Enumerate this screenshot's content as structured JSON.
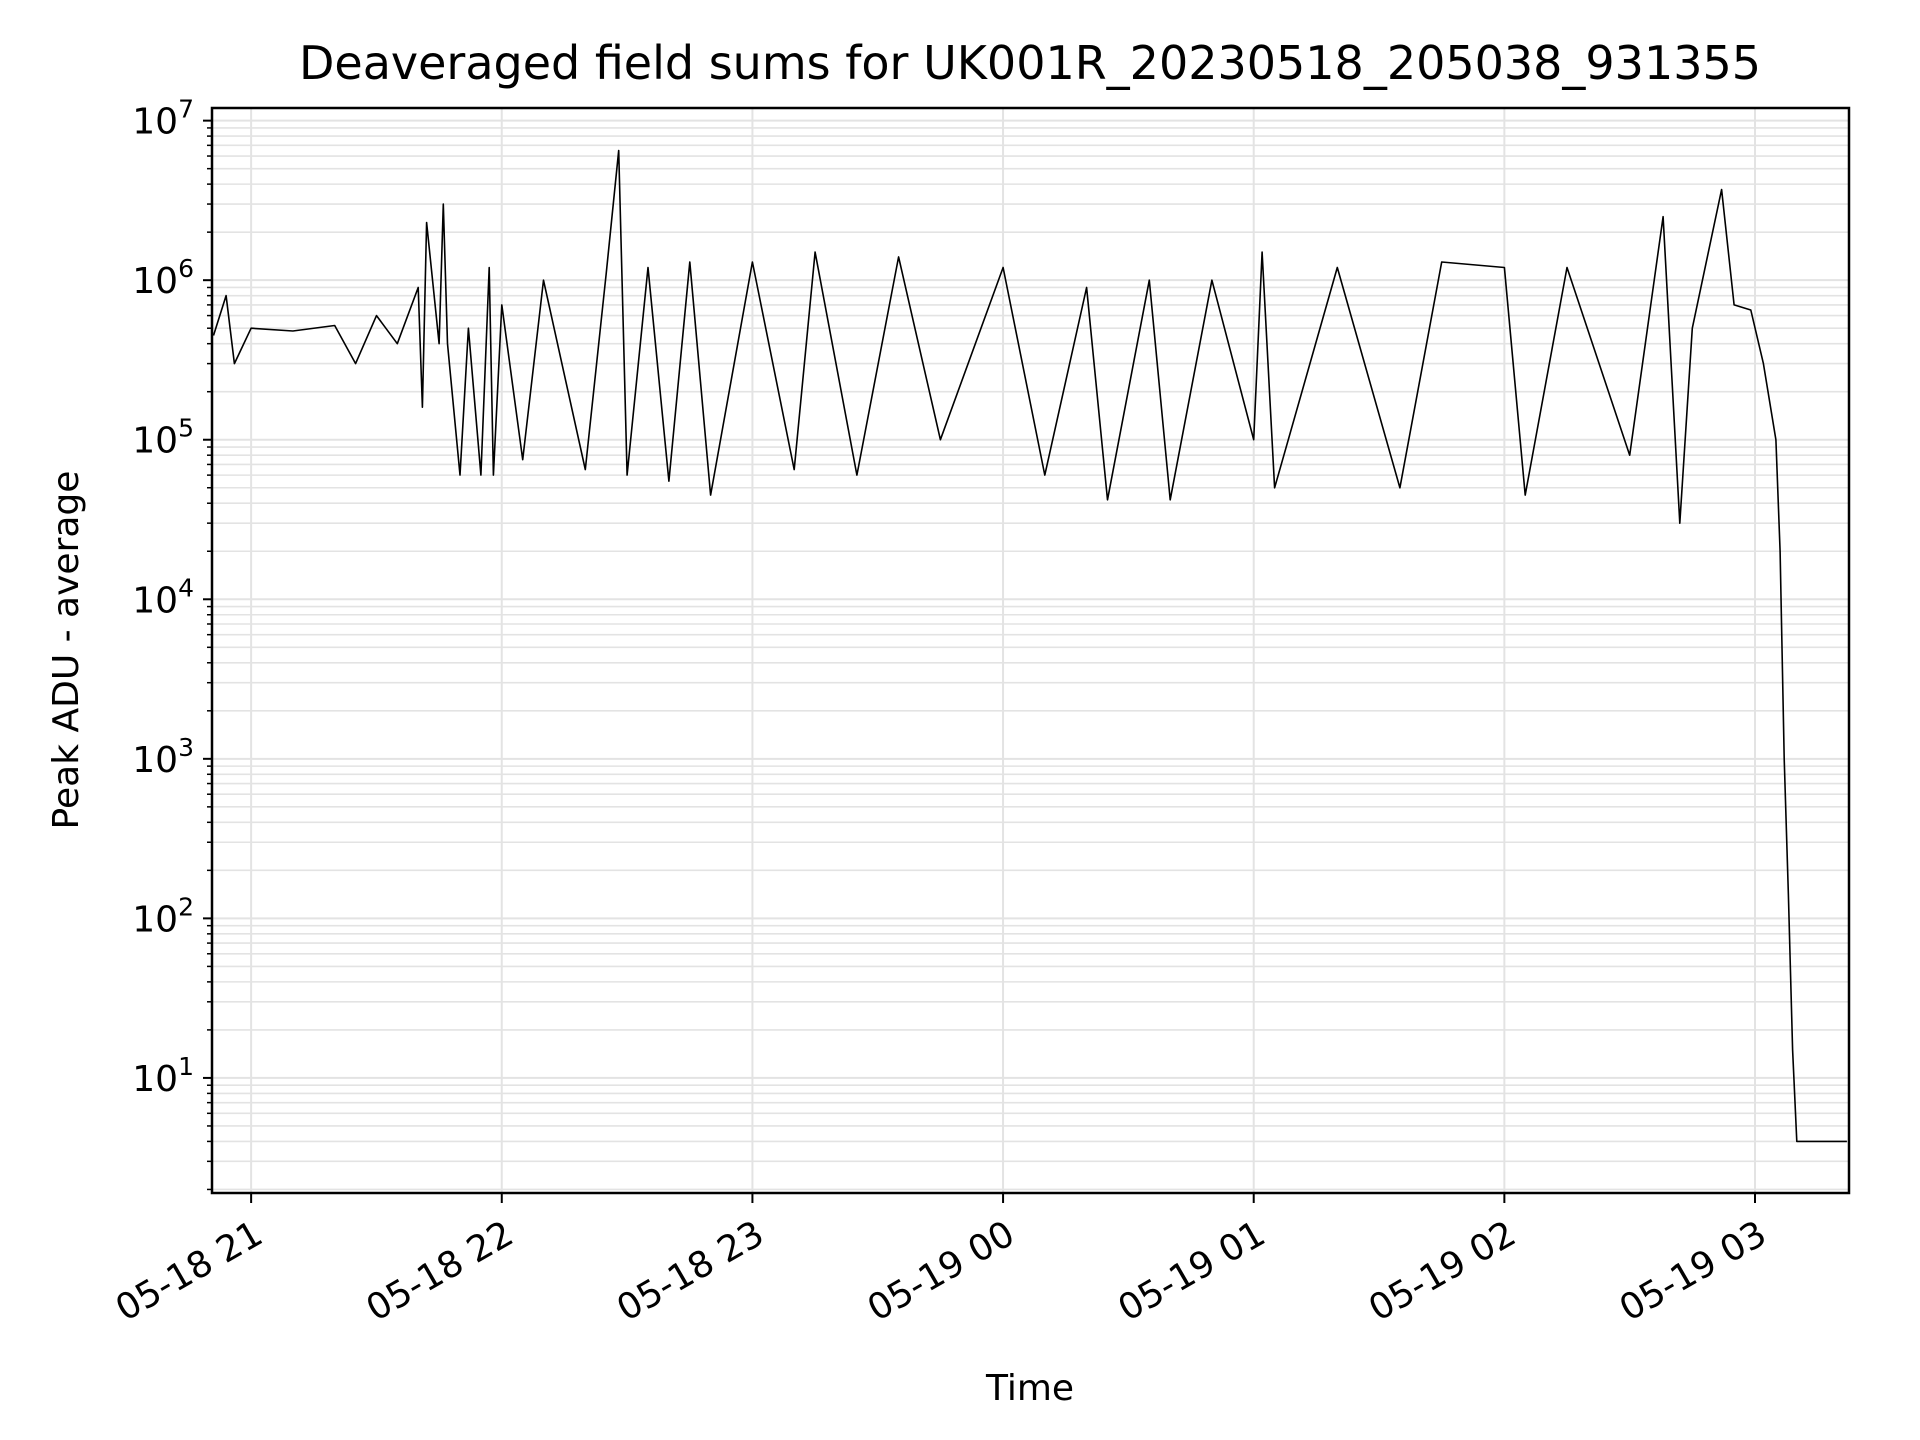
{
  "chart_data": {
    "type": "line",
    "title": "Deaveraged field sums for UK001R_20230518_205038_931355",
    "xlabel": "Time",
    "ylabel": "Peak ADU - average",
    "y_scale": "log",
    "ylim": [
      1.9,
      12000000
    ],
    "xlim": [
      "2023-05-18T20:50:38",
      "2023-05-19T03:22:30"
    ],
    "grid": true,
    "legend": "none",
    "x_ticks": [
      {
        "t": "2023-05-18T21:00",
        "label": "05-18 21"
      },
      {
        "t": "2023-05-18T22:00",
        "label": "05-18 22"
      },
      {
        "t": "2023-05-18T23:00",
        "label": "05-18 23"
      },
      {
        "t": "2023-05-19T00:00",
        "label": "05-19 00"
      },
      {
        "t": "2023-05-19T01:00",
        "label": "05-19 01"
      },
      {
        "t": "2023-05-19T02:00",
        "label": "05-19 02"
      },
      {
        "t": "2023-05-19T03:00",
        "label": "05-19 03"
      }
    ],
    "y_ticks": [
      {
        "v": 10,
        "base": "10",
        "exp": "1"
      },
      {
        "v": 100,
        "base": "10",
        "exp": "2"
      },
      {
        "v": 1000,
        "base": "10",
        "exp": "3"
      },
      {
        "v": 10000,
        "base": "10",
        "exp": "4"
      },
      {
        "v": 100000,
        "base": "10",
        "exp": "5"
      },
      {
        "v": 1000000,
        "base": "10",
        "exp": "6"
      },
      {
        "v": 10000000,
        "base": "10",
        "exp": "7"
      }
    ],
    "series": [
      {
        "color": "#000000",
        "points": [
          [
            "2023-05-18T20:51",
            450000
          ],
          [
            "2023-05-18T20:54",
            800000
          ],
          [
            "2023-05-18T20:56",
            300000
          ],
          [
            "2023-05-18T21:00",
            500000
          ],
          [
            "2023-05-18T21:10",
            480000
          ],
          [
            "2023-05-18T21:20",
            520000
          ],
          [
            "2023-05-18T21:25",
            300000
          ],
          [
            "2023-05-18T21:30",
            600000
          ],
          [
            "2023-05-18T21:35",
            400000
          ],
          [
            "2023-05-18T21:40",
            900000
          ],
          [
            "2023-05-18T21:41",
            160000
          ],
          [
            "2023-05-18T21:42",
            2300000
          ],
          [
            "2023-05-18T21:45",
            400000
          ],
          [
            "2023-05-18T21:46",
            3000000
          ],
          [
            "2023-05-18T21:47",
            400000
          ],
          [
            "2023-05-18T21:50",
            60000
          ],
          [
            "2023-05-18T21:52",
            500000
          ],
          [
            "2023-05-18T21:55",
            60000
          ],
          [
            "2023-05-18T21:57",
            1200000
          ],
          [
            "2023-05-18T21:58",
            60000
          ],
          [
            "2023-05-18T22:00",
            700000
          ],
          [
            "2023-05-18T22:05",
            75000
          ],
          [
            "2023-05-18T22:10",
            1000000
          ],
          [
            "2023-05-18T22:20",
            65000
          ],
          [
            "2023-05-18T22:25",
            1100000
          ],
          [
            "2023-05-18T22:28",
            6500000
          ],
          [
            "2023-05-18T22:30",
            60000
          ],
          [
            "2023-05-18T22:35",
            1200000
          ],
          [
            "2023-05-18T22:40",
            55000
          ],
          [
            "2023-05-18T22:45",
            1300000
          ],
          [
            "2023-05-18T22:50",
            45000
          ],
          [
            "2023-05-18T23:00",
            1300000
          ],
          [
            "2023-05-18T23:10",
            65000
          ],
          [
            "2023-05-18T23:15",
            1500000
          ],
          [
            "2023-05-18T23:25",
            60000
          ],
          [
            "2023-05-18T23:35",
            1400000
          ],
          [
            "2023-05-18T23:45",
            100000
          ],
          [
            "2023-05-19T00:00",
            1200000
          ],
          [
            "2023-05-19T00:10",
            60000
          ],
          [
            "2023-05-19T00:20",
            900000
          ],
          [
            "2023-05-19T00:25",
            42000
          ],
          [
            "2023-05-19T00:35",
            1000000
          ],
          [
            "2023-05-19T00:40",
            42000
          ],
          [
            "2023-05-19T00:50",
            1000000
          ],
          [
            "2023-05-19T01:00",
            100000
          ],
          [
            "2023-05-19T01:02",
            1500000
          ],
          [
            "2023-05-19T01:05",
            50000
          ],
          [
            "2023-05-19T01:20",
            1200000
          ],
          [
            "2023-05-19T01:35",
            50000
          ],
          [
            "2023-05-19T01:45",
            1300000
          ],
          [
            "2023-05-19T02:00",
            1200000
          ],
          [
            "2023-05-19T02:05",
            45000
          ],
          [
            "2023-05-19T02:15",
            1200000
          ],
          [
            "2023-05-19T02:30",
            80000
          ],
          [
            "2023-05-19T02:38",
            2500000
          ],
          [
            "2023-05-19T02:42",
            30000
          ],
          [
            "2023-05-19T02:45",
            500000
          ],
          [
            "2023-05-19T02:52",
            3700000
          ],
          [
            "2023-05-19T02:55",
            700000
          ],
          [
            "2023-05-19T02:59",
            650000
          ],
          [
            "2023-05-19T03:02",
            300000
          ],
          [
            "2023-05-19T03:05",
            100000
          ],
          [
            "2023-05-19T03:06",
            20000
          ],
          [
            "2023-05-19T03:07",
            1000
          ],
          [
            "2023-05-19T03:08",
            140
          ],
          [
            "2023-05-19T03:09",
            15
          ],
          [
            "2023-05-19T03:10",
            4
          ],
          [
            "2023-05-19T03:22",
            4
          ]
        ]
      }
    ]
  }
}
